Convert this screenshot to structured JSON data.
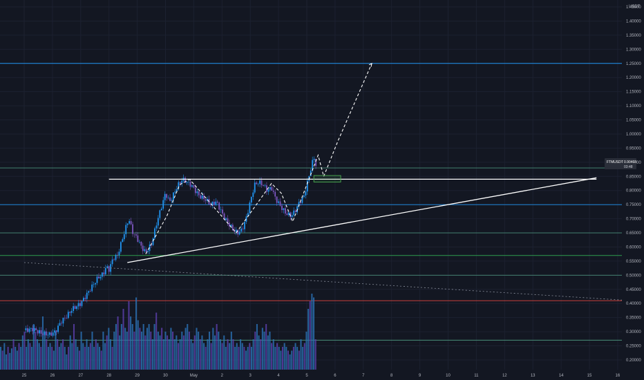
{
  "chart_data": {
    "type": "candlestick",
    "price_unit": "USDT",
    "symbol": "FTMUSDT",
    "last_price": "0.90468",
    "countdown": "03:48",
    "y_ticks": [
      "1.45000",
      "1.40000",
      "1.35000",
      "1.30000",
      "1.25000",
      "1.20000",
      "1.15000",
      "1.10000",
      "1.05000",
      "1.00000",
      "0.95000",
      "0.90000",
      "0.85000",
      "0.80000",
      "0.75000",
      "0.70000",
      "0.65000",
      "0.60000",
      "0.55000",
      "0.50000",
      "0.45000",
      "0.40000",
      "0.35000",
      "0.30000",
      "0.25000",
      "0.20000"
    ],
    "x_ticks": [
      "25",
      "26",
      "27",
      "28",
      "29",
      "30",
      "May",
      "2",
      "3",
      "4",
      "5",
      "6",
      "7",
      "8",
      "9",
      "10",
      "11",
      "12",
      "13",
      "14",
      "15",
      "16"
    ],
    "ylim": [
      0.185,
      1.465
    ],
    "horizontal_levels": [
      {
        "price": 1.25,
        "color": "#2196f3"
      },
      {
        "price": 0.88,
        "color": "#4a8f7a"
      },
      {
        "price": 0.75,
        "color": "#2196f3"
      },
      {
        "price": 0.65,
        "color": "#4a8f7a"
      },
      {
        "price": 0.57,
        "color": "#2e9d4e"
      },
      {
        "price": 0.5,
        "color": "#4a8f7a"
      },
      {
        "price": 0.41,
        "color": "#e0463f"
      },
      {
        "price": 0.27,
        "color": "#4a8f7a"
      }
    ],
    "close_path": [
      [
        0,
        0.305
      ],
      [
        0.3,
        0.31
      ],
      [
        0.6,
        0.295
      ],
      [
        0.9,
        0.29
      ],
      [
        1.1,
        0.3
      ],
      [
        1.3,
        0.335
      ],
      [
        1.5,
        0.355
      ],
      [
        1.7,
        0.38
      ],
      [
        2.0,
        0.4
      ],
      [
        2.2,
        0.43
      ],
      [
        2.4,
        0.46
      ],
      [
        2.6,
        0.49
      ],
      [
        2.8,
        0.505
      ],
      [
        2.9,
        0.53
      ],
      [
        3.0,
        0.52
      ],
      [
        3.15,
        0.56
      ],
      [
        3.3,
        0.57
      ],
      [
        3.45,
        0.62
      ],
      [
        3.6,
        0.67
      ],
      [
        3.7,
        0.7
      ],
      [
        3.85,
        0.65
      ],
      [
        4.0,
        0.63
      ],
      [
        4.15,
        0.6
      ],
      [
        4.3,
        0.58
      ],
      [
        4.5,
        0.61
      ],
      [
        4.7,
        0.69
      ],
      [
        4.85,
        0.74
      ],
      [
        5.0,
        0.79
      ],
      [
        5.15,
        0.76
      ],
      [
        5.3,
        0.79
      ],
      [
        5.45,
        0.82
      ],
      [
        5.6,
        0.84
      ],
      [
        5.75,
        0.83
      ],
      [
        5.9,
        0.82
      ],
      [
        6.05,
        0.8
      ],
      [
        6.2,
        0.78
      ],
      [
        6.4,
        0.77
      ],
      [
        6.6,
        0.75
      ],
      [
        6.8,
        0.76
      ],
      [
        6.95,
        0.73
      ],
      [
        7.1,
        0.7
      ],
      [
        7.25,
        0.68
      ],
      [
        7.4,
        0.66
      ],
      [
        7.55,
        0.65
      ],
      [
        7.7,
        0.66
      ],
      [
        7.85,
        0.7
      ],
      [
        8.0,
        0.76
      ],
      [
        8.15,
        0.82
      ],
      [
        8.3,
        0.83
      ],
      [
        8.45,
        0.82
      ],
      [
        8.6,
        0.8
      ],
      [
        8.75,
        0.81
      ],
      [
        8.9,
        0.77
      ],
      [
        9.1,
        0.74
      ],
      [
        9.25,
        0.72
      ],
      [
        9.45,
        0.71
      ],
      [
        9.6,
        0.73
      ],
      [
        9.75,
        0.76
      ],
      [
        9.9,
        0.78
      ],
      [
        10.0,
        0.82
      ],
      [
        10.1,
        0.86
      ],
      [
        10.2,
        0.9
      ],
      [
        10.25,
        0.925
      ],
      [
        10.3,
        0.88
      ],
      [
        10.35,
        0.905
      ]
    ],
    "volume": [
      0.3,
      0.25,
      0.35,
      0.2,
      0.3,
      0.22,
      0.28,
      0.4,
      0.3,
      0.25,
      0.35,
      0.3,
      0.45,
      0.5,
      0.3,
      0.4,
      0.35,
      0.3,
      0.6,
      0.5,
      0.4,
      0.35,
      0.3,
      0.7,
      0.5,
      0.4,
      0.3,
      0.35,
      0.3,
      0.25,
      0.5,
      0.4,
      0.3,
      0.35,
      0.4,
      0.3,
      0.2,
      0.3,
      0.45,
      0.35,
      0.6,
      0.4,
      0.3,
      0.25,
      0.5,
      0.35,
      0.3,
      0.4,
      0.3,
      0.35,
      0.5,
      0.3,
      0.4,
      0.35,
      0.3,
      0.25,
      0.5,
      0.35,
      0.45,
      0.55,
      0.4,
      0.3,
      0.5,
      0.6,
      0.7,
      0.45,
      0.6,
      0.8,
      0.55,
      0.5,
      0.9,
      0.7,
      0.6,
      0.5,
      0.95,
      0.65,
      0.55,
      0.5,
      0.6,
      0.45,
      0.55,
      0.6,
      0.5,
      0.4,
      0.6,
      0.75,
      0.5,
      0.45,
      0.55,
      0.4,
      0.5,
      0.45,
      0.4,
      0.55,
      0.5,
      0.4,
      0.45,
      0.35,
      0.4,
      0.5,
      0.45,
      0.55,
      0.6,
      0.5,
      0.4,
      0.35,
      0.45,
      0.55,
      0.5,
      0.4,
      0.45,
      0.35,
      0.3,
      0.4,
      0.5,
      0.35,
      0.55,
      0.45,
      0.6,
      0.5,
      0.4,
      0.35,
      0.45,
      0.3,
      0.4,
      0.35,
      0.5,
      0.4,
      0.3,
      0.35,
      0.3,
      0.4,
      0.35,
      0.3,
      0.25,
      0.3,
      0.35,
      0.3,
      0.4,
      0.5,
      0.6,
      0.45,
      0.4,
      0.55,
      0.5,
      0.6,
      0.45,
      0.5,
      0.35,
      0.4,
      0.3,
      0.35,
      0.3,
      0.25,
      0.3,
      0.35,
      0.3,
      0.25,
      0.2,
      0.25,
      0.3,
      0.35,
      0.3,
      0.25,
      0.4,
      0.3,
      0.35,
      0.5,
      0.8,
      0.9,
      1.0,
      0.95,
      0.4
    ]
  },
  "drawings": {
    "triangle_top": [
      [
        3.0,
        0.84
      ],
      [
        20.25,
        0.84
      ]
    ],
    "triangle_bottom": [
      [
        3.65,
        0.545
      ],
      [
        20.25,
        0.845
      ]
    ],
    "descending_dotted": [
      [
        0,
        0.545
      ],
      [
        21.5,
        0.41
      ]
    ],
    "path_projection": [
      [
        4.3,
        0.575
      ],
      [
        5.05,
        0.71
      ],
      [
        5.5,
        0.82
      ],
      [
        5.85,
        0.84
      ],
      [
        7.5,
        0.65
      ],
      [
        8.75,
        0.825
      ],
      [
        9.1,
        0.79
      ],
      [
        9.5,
        0.69
      ],
      [
        10.4,
        0.925
      ],
      [
        10.6,
        0.85
      ],
      [
        11.1,
        0.975
      ],
      [
        12.3,
        1.25
      ]
    ],
    "retest_box": {
      "x1": 10.25,
      "x2": 11.2,
      "y1": 0.83,
      "y2": 0.853
    }
  }
}
